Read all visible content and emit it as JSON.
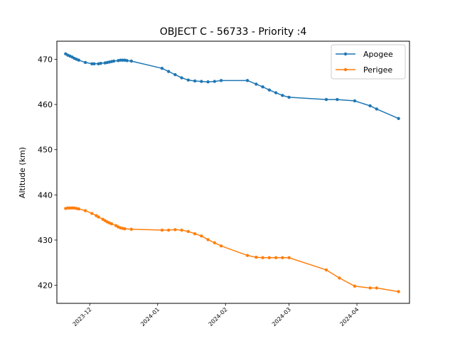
{
  "chart_data": {
    "type": "line",
    "title": "OBJECT C - 56733 - Priority :4",
    "xlabel": "",
    "ylabel": "Altitude (km)",
    "x_type": "date",
    "xlim": [
      "2023-11-16",
      "2024-04-25"
    ],
    "ylim": [
      416,
      474
    ],
    "x_ticks": [
      "2023-12",
      "2024-01",
      "2024-02",
      "2024-03",
      "2024-04"
    ],
    "y_ticks": [
      420,
      430,
      440,
      450,
      460,
      470
    ],
    "grid": false,
    "legend_position": "upper right",
    "series": [
      {
        "name": "Apogee",
        "color": "#1f77b4",
        "marker": "circle",
        "points": [
          [
            "2023-11-20",
            471.2
          ],
          [
            "2023-11-21",
            470.9
          ],
          [
            "2023-11-22",
            470.7
          ],
          [
            "2023-11-23",
            470.5
          ],
          [
            "2023-11-24",
            470.2
          ],
          [
            "2023-11-25",
            470.0
          ],
          [
            "2023-11-26",
            469.8
          ],
          [
            "2023-11-29",
            469.3
          ],
          [
            "2023-12-02",
            469.0
          ],
          [
            "2023-12-03",
            469.0
          ],
          [
            "2023-12-05",
            469.0
          ],
          [
            "2023-12-06",
            469.1
          ],
          [
            "2023-12-08",
            469.2
          ],
          [
            "2023-12-09",
            469.3
          ],
          [
            "2023-12-10",
            469.4
          ],
          [
            "2023-12-11",
            469.5
          ],
          [
            "2023-12-12",
            469.6
          ],
          [
            "2023-12-14",
            469.7
          ],
          [
            "2023-12-15",
            469.8
          ],
          [
            "2023-12-16",
            469.8
          ],
          [
            "2023-12-17",
            469.8
          ],
          [
            "2023-12-18",
            469.7
          ],
          [
            "2023-12-20",
            469.6
          ],
          [
            "2024-01-03",
            468.0
          ],
          [
            "2024-01-06",
            467.3
          ],
          [
            "2024-01-09",
            466.6
          ],
          [
            "2024-01-12",
            465.9
          ],
          [
            "2024-01-15",
            465.4
          ],
          [
            "2024-01-18",
            465.2
          ],
          [
            "2024-01-21",
            465.1
          ],
          [
            "2024-01-24",
            465.0
          ],
          [
            "2024-01-27",
            465.1
          ],
          [
            "2024-01-30",
            465.3
          ],
          [
            "2024-02-11",
            465.3
          ],
          [
            "2024-02-15",
            464.5
          ],
          [
            "2024-02-18",
            463.9
          ],
          [
            "2024-02-21",
            463.2
          ],
          [
            "2024-02-24",
            462.6
          ],
          [
            "2024-02-27",
            462.0
          ],
          [
            "2024-03-01",
            461.6
          ],
          [
            "2024-03-18",
            461.1
          ],
          [
            "2024-03-23",
            461.1
          ],
          [
            "2024-03-31",
            460.8
          ],
          [
            "2024-04-07",
            459.7
          ],
          [
            "2024-04-10",
            459.0
          ],
          [
            "2024-04-20",
            456.9
          ]
        ]
      },
      {
        "name": "Perigee",
        "color": "#ff7f0e",
        "marker": "circle",
        "points": [
          [
            "2023-11-20",
            437.0
          ],
          [
            "2023-11-21",
            437.1
          ],
          [
            "2023-11-22",
            437.1
          ],
          [
            "2023-11-23",
            437.1
          ],
          [
            "2023-11-24",
            437.1
          ],
          [
            "2023-11-25",
            437.0
          ],
          [
            "2023-11-26",
            436.9
          ],
          [
            "2023-11-29",
            436.5
          ],
          [
            "2023-12-02",
            435.9
          ],
          [
            "2023-12-04",
            435.4
          ],
          [
            "2023-12-05",
            435.1
          ],
          [
            "2023-12-07",
            434.6
          ],
          [
            "2023-12-08",
            434.3
          ],
          [
            "2023-12-09",
            434.0
          ],
          [
            "2023-12-10",
            433.8
          ],
          [
            "2023-12-11",
            433.6
          ],
          [
            "2023-12-13",
            433.2
          ],
          [
            "2023-12-14",
            432.9
          ],
          [
            "2023-12-15",
            432.7
          ],
          [
            "2023-12-16",
            432.6
          ],
          [
            "2023-12-17",
            432.5
          ],
          [
            "2023-12-20",
            432.4
          ],
          [
            "2024-01-03",
            432.2
          ],
          [
            "2024-01-06",
            432.2
          ],
          [
            "2024-01-09",
            432.3
          ],
          [
            "2024-01-12",
            432.2
          ],
          [
            "2024-01-15",
            431.9
          ],
          [
            "2024-01-18",
            431.4
          ],
          [
            "2024-01-21",
            430.9
          ],
          [
            "2024-01-24",
            430.1
          ],
          [
            "2024-01-27",
            429.4
          ],
          [
            "2024-01-30",
            428.7
          ],
          [
            "2024-02-11",
            426.6
          ],
          [
            "2024-02-15",
            426.2
          ],
          [
            "2024-02-18",
            426.1
          ],
          [
            "2024-02-21",
            426.1
          ],
          [
            "2024-02-24",
            426.1
          ],
          [
            "2024-02-27",
            426.1
          ],
          [
            "2024-03-01",
            426.1
          ],
          [
            "2024-03-18",
            423.4
          ],
          [
            "2024-03-24",
            421.6
          ],
          [
            "2024-03-31",
            419.8
          ],
          [
            "2024-04-07",
            419.4
          ],
          [
            "2024-04-10",
            419.4
          ],
          [
            "2024-04-20",
            418.6
          ]
        ]
      }
    ]
  }
}
